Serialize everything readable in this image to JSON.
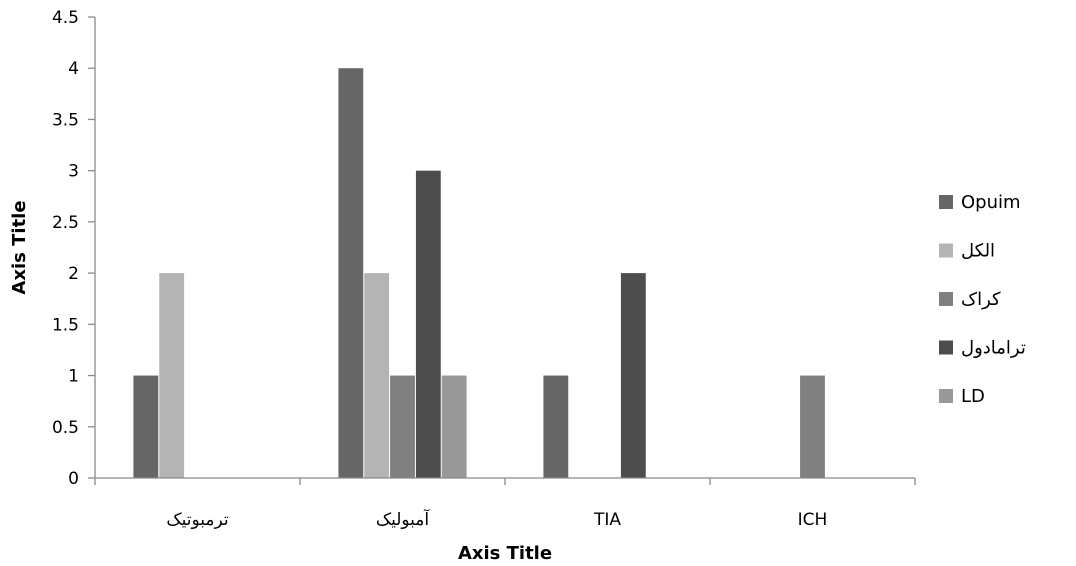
{
  "chart_data": {
    "type": "bar",
    "categories": [
      "ترمبوتیک",
      "آمبولیک",
      "TIA",
      "ICH"
    ],
    "series": [
      {
        "name": "Opuim",
        "color": "#666666",
        "values": [
          1,
          4,
          1,
          0
        ]
      },
      {
        "name": "الکل",
        "color": "#b4b4b4",
        "values": [
          2,
          2,
          0,
          0
        ]
      },
      {
        "name": "کراک",
        "color": "#808080",
        "values": [
          0,
          1,
          0,
          1
        ]
      },
      {
        "name": "ترامادول",
        "color": "#4d4d4d",
        "values": [
          0,
          3,
          2,
          0
        ]
      },
      {
        "name": "LD",
        "color": "#999999",
        "values": [
          0,
          1,
          0,
          0
        ]
      }
    ],
    "xlabel": "Axis Title",
    "ylabel": "Axis Title",
    "ylim": [
      0,
      4.5
    ],
    "yticks": [
      0,
      0.5,
      1,
      1.5,
      2,
      2.5,
      3,
      3.5,
      4,
      4.5
    ],
    "grid": false,
    "legend_position": "right"
  }
}
